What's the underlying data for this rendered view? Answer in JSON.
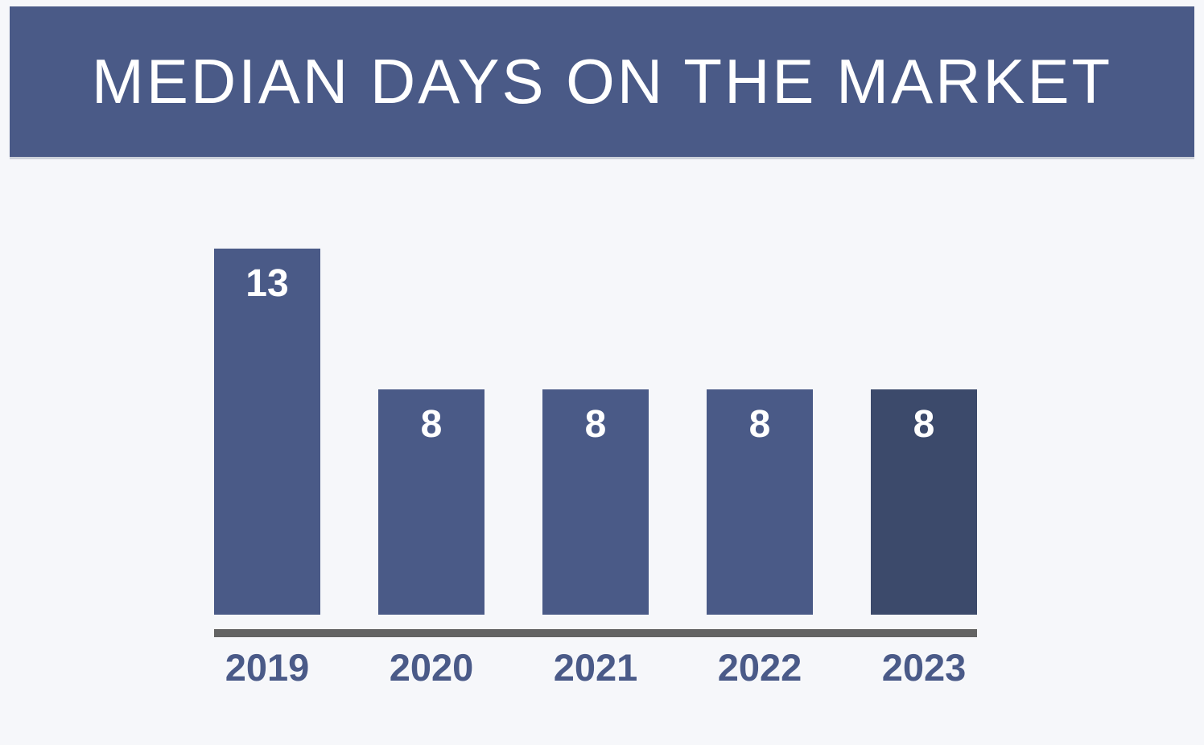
{
  "page": {
    "background_color": "#f6f7fa"
  },
  "header": {
    "title": "MEDIAN DAYS ON THE MARKET",
    "background_color": "#4a5a87",
    "text_color": "#ffffff"
  },
  "chart_data": {
    "type": "bar",
    "title": "MEDIAN DAYS ON THE MARKET",
    "categories": [
      "2019",
      "2020",
      "2021",
      "2022",
      "2023"
    ],
    "values": [
      13,
      8,
      8,
      8,
      8
    ],
    "value_labels": [
      "13",
      "8",
      "8",
      "8",
      "8"
    ],
    "xlabel": "",
    "ylabel": "",
    "ylim": [
      0,
      13
    ],
    "grid": false,
    "legend": false,
    "bar_colors": [
      "#4a5a87",
      "#4a5a87",
      "#4a5a87",
      "#4a5a87",
      "#3c4a6b"
    ],
    "value_label_color": "#ffffff",
    "category_label_color": "#4a5a88",
    "axis_line_color": "#636363"
  }
}
